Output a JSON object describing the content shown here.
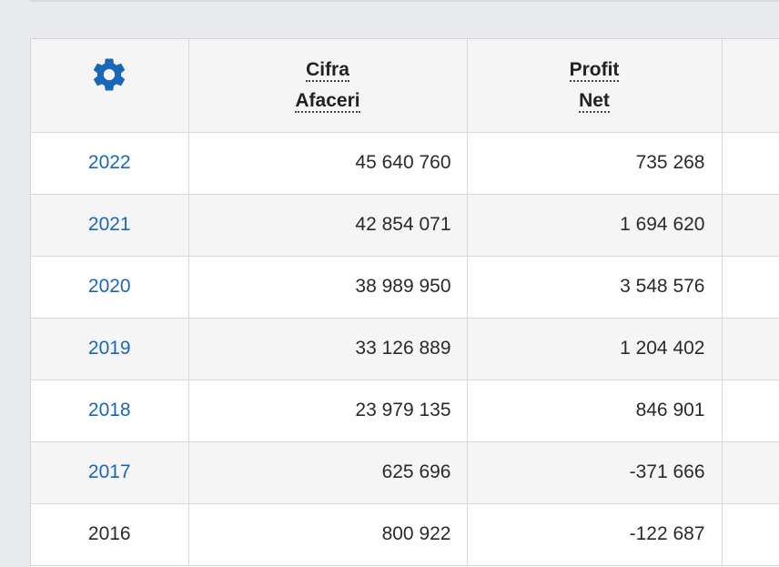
{
  "table": {
    "columns": {
      "settings_icon": "gear-icon",
      "cifra_afaceri": [
        "Cifra",
        "Afaceri"
      ],
      "profit_net": [
        "Profit",
        "Net"
      ]
    },
    "rows": [
      {
        "year": "2022",
        "cifra_afaceri": "45 640 760",
        "profit_net": "735 268",
        "year_link": true
      },
      {
        "year": "2021",
        "cifra_afaceri": "42 854 071",
        "profit_net": "1 694 620",
        "year_link": true
      },
      {
        "year": "2020",
        "cifra_afaceri": "38 989 950",
        "profit_net": "3 548 576",
        "year_link": true
      },
      {
        "year": "2019",
        "cifra_afaceri": "33 126 889",
        "profit_net": "1 204 402",
        "year_link": true
      },
      {
        "year": "2018",
        "cifra_afaceri": "23 979 135",
        "profit_net": "846 901",
        "year_link": true
      },
      {
        "year": "2017",
        "cifra_afaceri": "625 696",
        "profit_net": "-371 666",
        "year_link": true
      },
      {
        "year": "2016",
        "cifra_afaceri": "800 922",
        "profit_net": "-122 687",
        "year_link": false
      }
    ]
  },
  "colors": {
    "link": "#1a67b8",
    "gear": "#1a67b8",
    "text": "#2a2a2a",
    "header_bg": "#f5f5f5",
    "grid": "#d9d9d9"
  }
}
